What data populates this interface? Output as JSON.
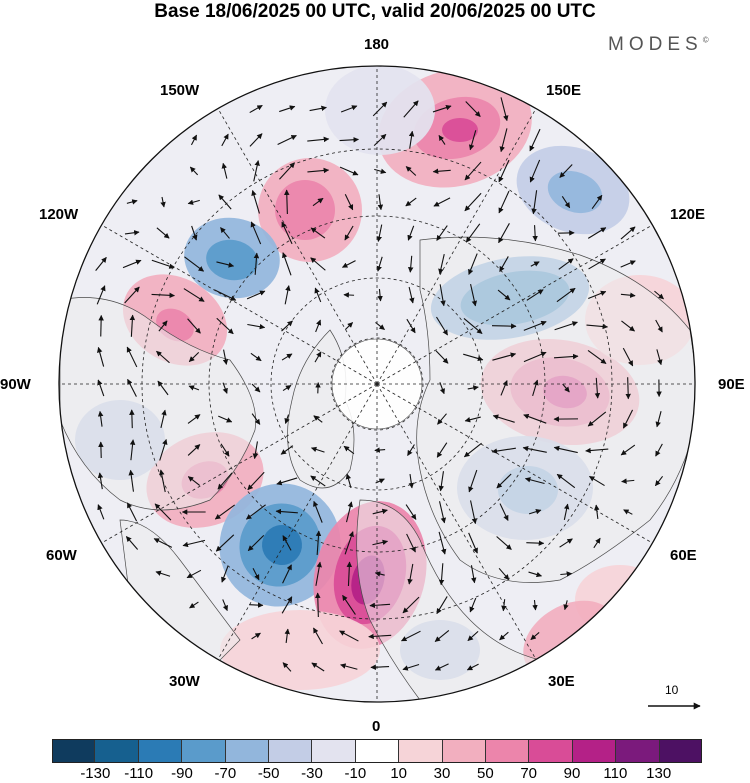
{
  "title": "Base 18/06/2025 00 UTC, valid 20/06/2025 00 UTC",
  "brand": "MODES",
  "brand_mark": "©",
  "longitude_labels": {
    "lon_180": "180",
    "lon_150e": "150E",
    "lon_120e": "120E",
    "lon_90e": "90E",
    "lon_60e": "60E",
    "lon_30e": "30E",
    "lon_0": "0",
    "lon_30w": "30W",
    "lon_60w": "60W",
    "lon_90w": "90W",
    "lon_120w": "120W",
    "lon_150w": "150W"
  },
  "reference_vector": {
    "label": "10"
  },
  "colorbar": {
    "ticks": [
      "-130",
      "-110",
      "-90",
      "-70",
      "-50",
      "-30",
      "-10",
      "10",
      "30",
      "50",
      "70",
      "90",
      "110",
      "130"
    ],
    "colors": [
      "#0f3b5e",
      "#16608f",
      "#2b7bb5",
      "#5a9bcb",
      "#92b6dc",
      "#c3cde6",
      "#e3e3ef",
      "#ffffff",
      "#f6d4d8",
      "#f2afbf",
      "#ec85ab",
      "#d94c97",
      "#b42187",
      "#7b1a7c",
      "#4d1163"
    ]
  },
  "colors": {
    "land": "#ededed",
    "ocean_bg": "#ffffff",
    "coast": "#4a4a4a",
    "grid": "#222222",
    "arrow": "#111111"
  }
}
